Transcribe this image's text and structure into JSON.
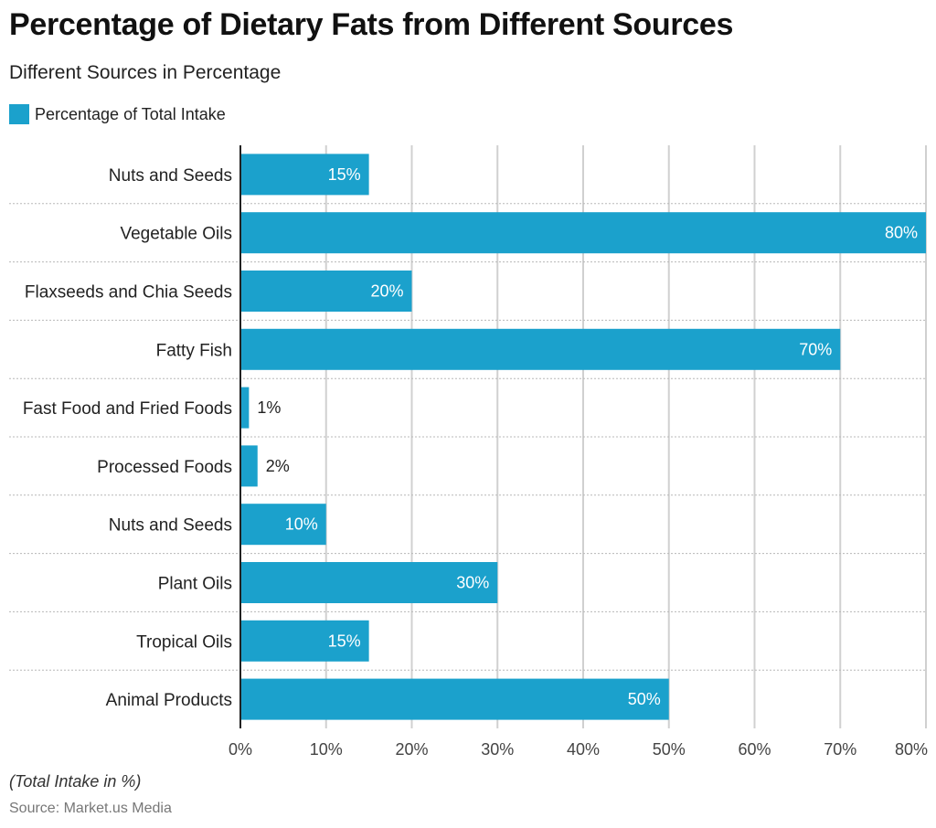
{
  "header": {
    "title": "Percentage of Dietary Fats from Different Sources",
    "subtitle": "Different Sources in Percentage"
  },
  "legend": {
    "label": "Percentage of Total Intake"
  },
  "footer": {
    "note": "(Total Intake in %)",
    "source": "Source: Market.us Media"
  },
  "colors": {
    "bar": "#1ba1cc",
    "grid": "#d0d0d0",
    "separator": "#b8b8b8",
    "axis": "#222222"
  },
  "chart_data": {
    "type": "bar",
    "orientation": "horizontal",
    "categories": [
      "Nuts and Seeds",
      "Vegetable Oils",
      "Flaxseeds and Chia Seeds",
      "Fatty Fish",
      "Fast Food and Fried Foods",
      "Processed Foods",
      "Nuts and Seeds",
      "Plant Oils",
      "Tropical Oils",
      "Animal Products"
    ],
    "series": [
      {
        "name": "Percentage of Total Intake",
        "values": [
          15,
          80,
          20,
          70,
          1,
          2,
          10,
          30,
          15,
          50
        ]
      }
    ],
    "value_labels": [
      "15%",
      "80%",
      "20%",
      "70%",
      "1%",
      "2%",
      "10%",
      "30%",
      "15%",
      "50%"
    ],
    "xticks": [
      "0%",
      "10%",
      "20%",
      "30%",
      "40%",
      "50%",
      "60%",
      "70%",
      "80%"
    ],
    "xlim": [
      0,
      80
    ],
    "grid": true,
    "legend_position": "top-left"
  }
}
